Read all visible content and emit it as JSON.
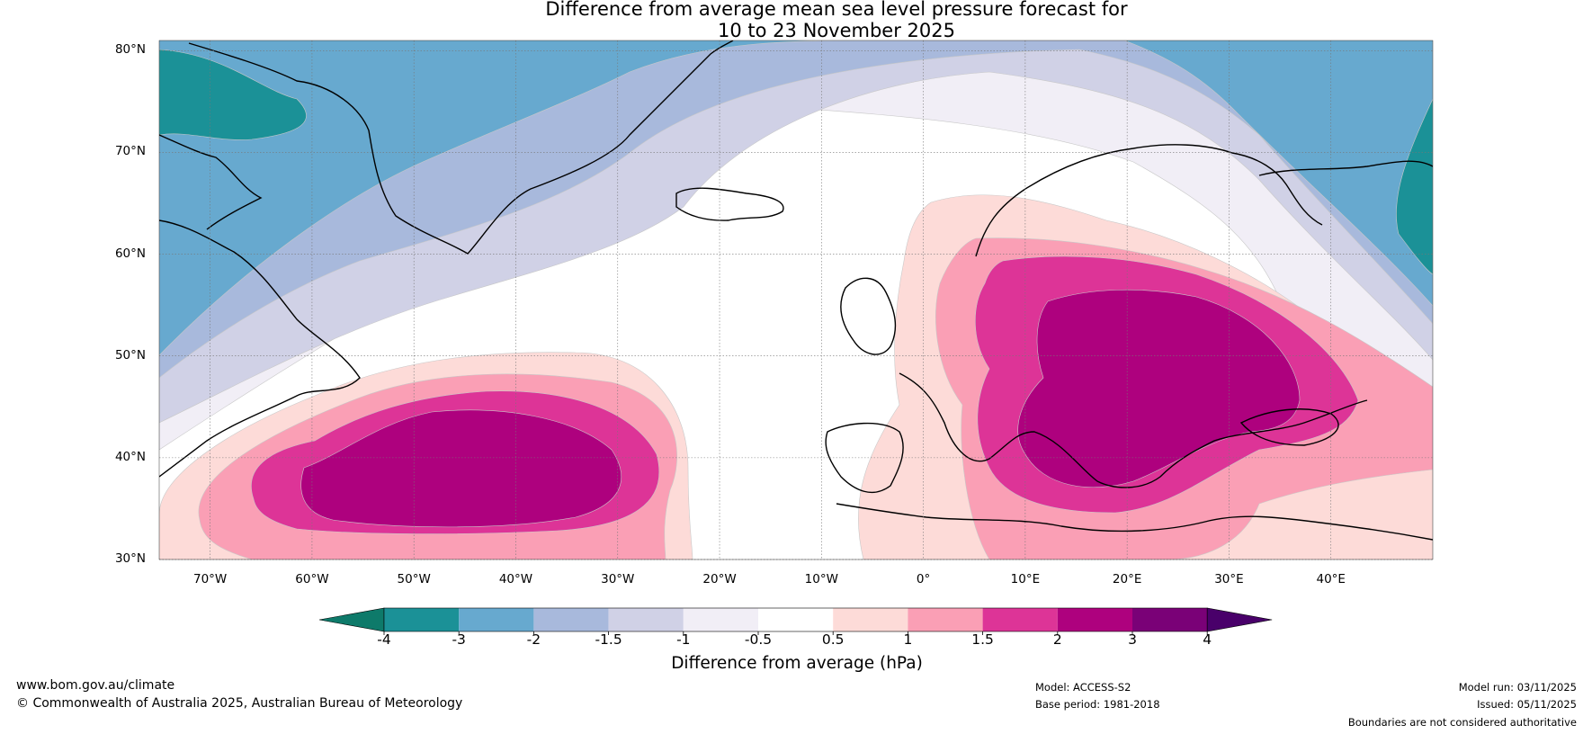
{
  "title_line1": "Difference from average mean sea level pressure forecast for",
  "title_line2": "10 to 23 November 2025",
  "latitudes": [
    {
      "value": 80,
      "label": "80°N"
    },
    {
      "value": 70,
      "label": "70°N"
    },
    {
      "value": 60,
      "label": "60°N"
    },
    {
      "value": 50,
      "label": "50°N"
    },
    {
      "value": 40,
      "label": "40°N"
    },
    {
      "value": 30,
      "label": "30°N"
    }
  ],
  "longitudes": [
    {
      "value": -70,
      "label": "70°W"
    },
    {
      "value": -60,
      "label": "60°W"
    },
    {
      "value": -50,
      "label": "50°W"
    },
    {
      "value": -40,
      "label": "40°W"
    },
    {
      "value": -30,
      "label": "30°W"
    },
    {
      "value": -20,
      "label": "20°W"
    },
    {
      "value": -10,
      "label": "10°W"
    },
    {
      "value": 0,
      "label": "0°"
    },
    {
      "value": 10,
      "label": "10°E"
    },
    {
      "value": 20,
      "label": "20°E"
    },
    {
      "value": 30,
      "label": "30°E"
    },
    {
      "value": 40,
      "label": "40°E"
    }
  ],
  "map_extent": {
    "lon_min": -75,
    "lon_max": 50,
    "lat_min": 30,
    "lat_max": 81
  },
  "colorbar": {
    "ticks": [
      "-4",
      "-3",
      "-2",
      "-1.5",
      "-1",
      "-0.5",
      "0.5",
      "1",
      "1.5",
      "2",
      "3",
      "4"
    ],
    "colors": [
      "#1b9197",
      "#67a9cf",
      "#a8b9dc",
      "#d0d1e6",
      "#f1eef6",
      "#ffffff",
      "#fddbd8",
      "#fa9fb5",
      "#dd3497",
      "#ae017e",
      "#7a0177"
    ],
    "extend_low_color": "#0e7a6a",
    "extend_high_color": "#49006a",
    "label": "Difference from average (hPa)"
  },
  "footer": {
    "website": "www.bom.gov.au/climate",
    "copyright": "© Commonwealth of Australia 2025, Australian Bureau of Meteorology",
    "model": "Model: ACCESS-S2",
    "base_period": "Base period: 1981-2018",
    "model_run": "Model run: 03/11/2025",
    "issued": "Issued: 05/11/2025",
    "disclaimer": "Boundaries are not considered authoritative"
  }
}
